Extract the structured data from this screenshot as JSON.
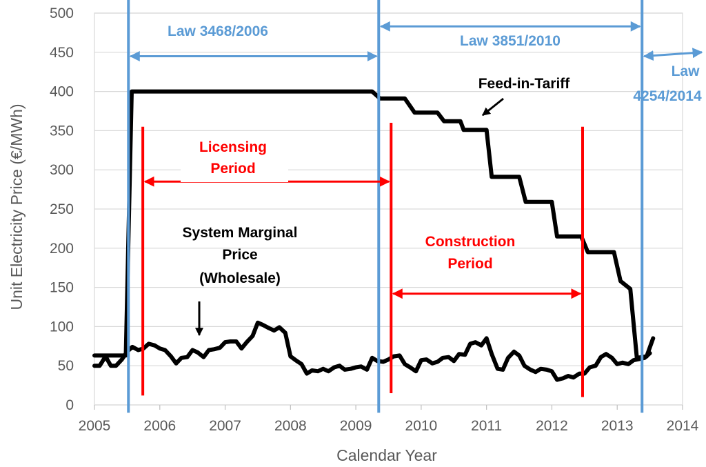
{
  "chart_data": {
    "type": "line",
    "xlabel": "Calendar Year",
    "ylabel": "Unit Electricity Price (€/MWh)",
    "xlim": [
      2005,
      2014
    ],
    "ylim": [
      0,
      500
    ],
    "x_ticks": [
      "2005",
      "2006",
      "2007",
      "2008",
      "2009",
      "2010",
      "2011",
      "2012",
      "2013",
      "2014"
    ],
    "y_ticks": [
      "0",
      "50",
      "100",
      "150",
      "200",
      "250",
      "300",
      "350",
      "400",
      "450",
      "500"
    ],
    "grid": "horizontal",
    "series": [
      {
        "name": "Feed-in-Tariff",
        "color": "#000000",
        "points": [
          [
            2005.0,
            63
          ],
          [
            2005.48,
            63
          ],
          [
            2005.57,
            400
          ],
          [
            2009.25,
            400
          ],
          [
            2009.37,
            391
          ],
          [
            2009.75,
            391
          ],
          [
            2009.9,
            373
          ],
          [
            2010.25,
            373
          ],
          [
            2010.35,
            362
          ],
          [
            2010.6,
            362
          ],
          [
            2010.65,
            351
          ],
          [
            2011.0,
            351
          ],
          [
            2011.08,
            291
          ],
          [
            2011.5,
            291
          ],
          [
            2011.6,
            259
          ],
          [
            2012.0,
            259
          ],
          [
            2012.08,
            215
          ],
          [
            2012.45,
            215
          ],
          [
            2012.55,
            195
          ],
          [
            2012.95,
            195
          ],
          [
            2013.05,
            158
          ],
          [
            2013.2,
            148
          ],
          [
            2013.3,
            60
          ],
          [
            2013.45,
            62
          ],
          [
            2013.55,
            85
          ]
        ]
      },
      {
        "name": "System Marginal Price (Wholesale)",
        "color": "#000000",
        "points": [
          [
            2005.0,
            50
          ],
          [
            2005.08,
            50
          ],
          [
            2005.17,
            62
          ],
          [
            2005.25,
            50
          ],
          [
            2005.33,
            50
          ],
          [
            2005.42,
            58
          ],
          [
            2005.5,
            68
          ],
          [
            2005.58,
            74
          ],
          [
            2005.67,
            70
          ],
          [
            2005.75,
            72
          ],
          [
            2005.83,
            78
          ],
          [
            2005.92,
            76
          ],
          [
            2006.0,
            72
          ],
          [
            2006.08,
            70
          ],
          [
            2006.17,
            62
          ],
          [
            2006.25,
            53
          ],
          [
            2006.33,
            60
          ],
          [
            2006.42,
            61
          ],
          [
            2006.5,
            70
          ],
          [
            2006.58,
            67
          ],
          [
            2006.67,
            61
          ],
          [
            2006.75,
            70
          ],
          [
            2006.83,
            71
          ],
          [
            2006.92,
            73
          ],
          [
            2007.0,
            80
          ],
          [
            2007.08,
            81
          ],
          [
            2007.17,
            81
          ],
          [
            2007.25,
            72
          ],
          [
            2007.33,
            80
          ],
          [
            2007.42,
            88
          ],
          [
            2007.5,
            105
          ],
          [
            2007.58,
            102
          ],
          [
            2007.67,
            98
          ],
          [
            2007.75,
            95
          ],
          [
            2007.83,
            99
          ],
          [
            2007.92,
            92
          ],
          [
            2008.0,
            62
          ],
          [
            2008.08,
            57
          ],
          [
            2008.17,
            52
          ],
          [
            2008.25,
            40
          ],
          [
            2008.33,
            44
          ],
          [
            2008.42,
            43
          ],
          [
            2008.5,
            46
          ],
          [
            2008.58,
            43
          ],
          [
            2008.67,
            48
          ],
          [
            2008.75,
            50
          ],
          [
            2008.83,
            45
          ],
          [
            2008.92,
            46
          ],
          [
            2009.0,
            48
          ],
          [
            2009.08,
            49
          ],
          [
            2009.17,
            45
          ],
          [
            2009.25,
            60
          ],
          [
            2009.33,
            56
          ],
          [
            2009.42,
            55
          ],
          [
            2009.5,
            58
          ],
          [
            2009.58,
            62
          ],
          [
            2009.67,
            63
          ],
          [
            2009.75,
            52
          ],
          [
            2009.83,
            48
          ],
          [
            2009.92,
            43
          ],
          [
            2010.0,
            57
          ],
          [
            2010.08,
            58
          ],
          [
            2010.17,
            53
          ],
          [
            2010.25,
            55
          ],
          [
            2010.33,
            60
          ],
          [
            2010.42,
            61
          ],
          [
            2010.5,
            56
          ],
          [
            2010.58,
            65
          ],
          [
            2010.67,
            64
          ],
          [
            2010.75,
            78
          ],
          [
            2010.83,
            80
          ],
          [
            2010.92,
            76
          ],
          [
            2011.0,
            85
          ],
          [
            2011.08,
            65
          ],
          [
            2011.17,
            46
          ],
          [
            2011.25,
            45
          ],
          [
            2011.33,
            60
          ],
          [
            2011.42,
            68
          ],
          [
            2011.5,
            63
          ],
          [
            2011.58,
            50
          ],
          [
            2011.67,
            45
          ],
          [
            2011.75,
            42
          ],
          [
            2011.83,
            46
          ],
          [
            2011.92,
            45
          ],
          [
            2012.0,
            43
          ],
          [
            2012.08,
            32
          ],
          [
            2012.17,
            34
          ],
          [
            2012.25,
            37
          ],
          [
            2012.33,
            35
          ],
          [
            2012.42,
            40
          ],
          [
            2012.5,
            40
          ],
          [
            2012.58,
            48
          ],
          [
            2012.67,
            50
          ],
          [
            2012.75,
            61
          ],
          [
            2012.83,
            65
          ],
          [
            2012.92,
            60
          ],
          [
            2013.0,
            52
          ],
          [
            2013.08,
            54
          ],
          [
            2013.17,
            52
          ],
          [
            2013.25,
            57
          ],
          [
            2013.42,
            60
          ],
          [
            2013.5,
            66
          ]
        ]
      }
    ],
    "vertical_lines": [
      {
        "x": 2005.52,
        "color": "#5b9bd5",
        "y_from": -10,
        "y_to": 520
      },
      {
        "x": 2009.35,
        "color": "#5b9bd5",
        "y_from": -10,
        "y_to": 520
      },
      {
        "x": 2013.38,
        "color": "#5b9bd5",
        "y_from": -10,
        "y_to": 520
      },
      {
        "x": 2005.74,
        "color": "#ff0000",
        "y_from": 12,
        "y_to": 355
      },
      {
        "x": 2009.54,
        "color": "#ff0000",
        "y_from": 15,
        "y_to": 360
      },
      {
        "x": 2012.47,
        "color": "#ff0000",
        "y_from": 10,
        "y_to": 355
      }
    ],
    "spans": [
      {
        "label": "Law 3468/2006",
        "color": "#5b9bd5",
        "x_from": 2005.52,
        "x_to": 2009.35,
        "y": 445
      },
      {
        "label": "Law 3851/2010",
        "color": "#5b9bd5",
        "x_from": 2009.35,
        "x_to": 2013.38,
        "y": 483
      },
      {
        "label": "Licensing Period",
        "color": "#ff0000",
        "x_from": 2005.74,
        "x_to": 2009.54,
        "y": 285
      },
      {
        "label": "Construction Period",
        "color": "#ff0000",
        "x_from": 2009.54,
        "x_to": 2012.47,
        "y": 142
      }
    ],
    "annotations": {
      "law1": "Law 3468/2006",
      "law2": "Law 3851/2010",
      "law3_line1": "Law",
      "law3_line2": "4254/2014",
      "fit": "Feed-in-Tariff",
      "licensing_line1": "Licensing",
      "licensing_line2": "Period",
      "construction_line1": "Construction",
      "construction_line2": "Period",
      "smp_line1": "System Marginal",
      "smp_line2": "Price",
      "smp_line3": "(Wholesale)"
    }
  }
}
